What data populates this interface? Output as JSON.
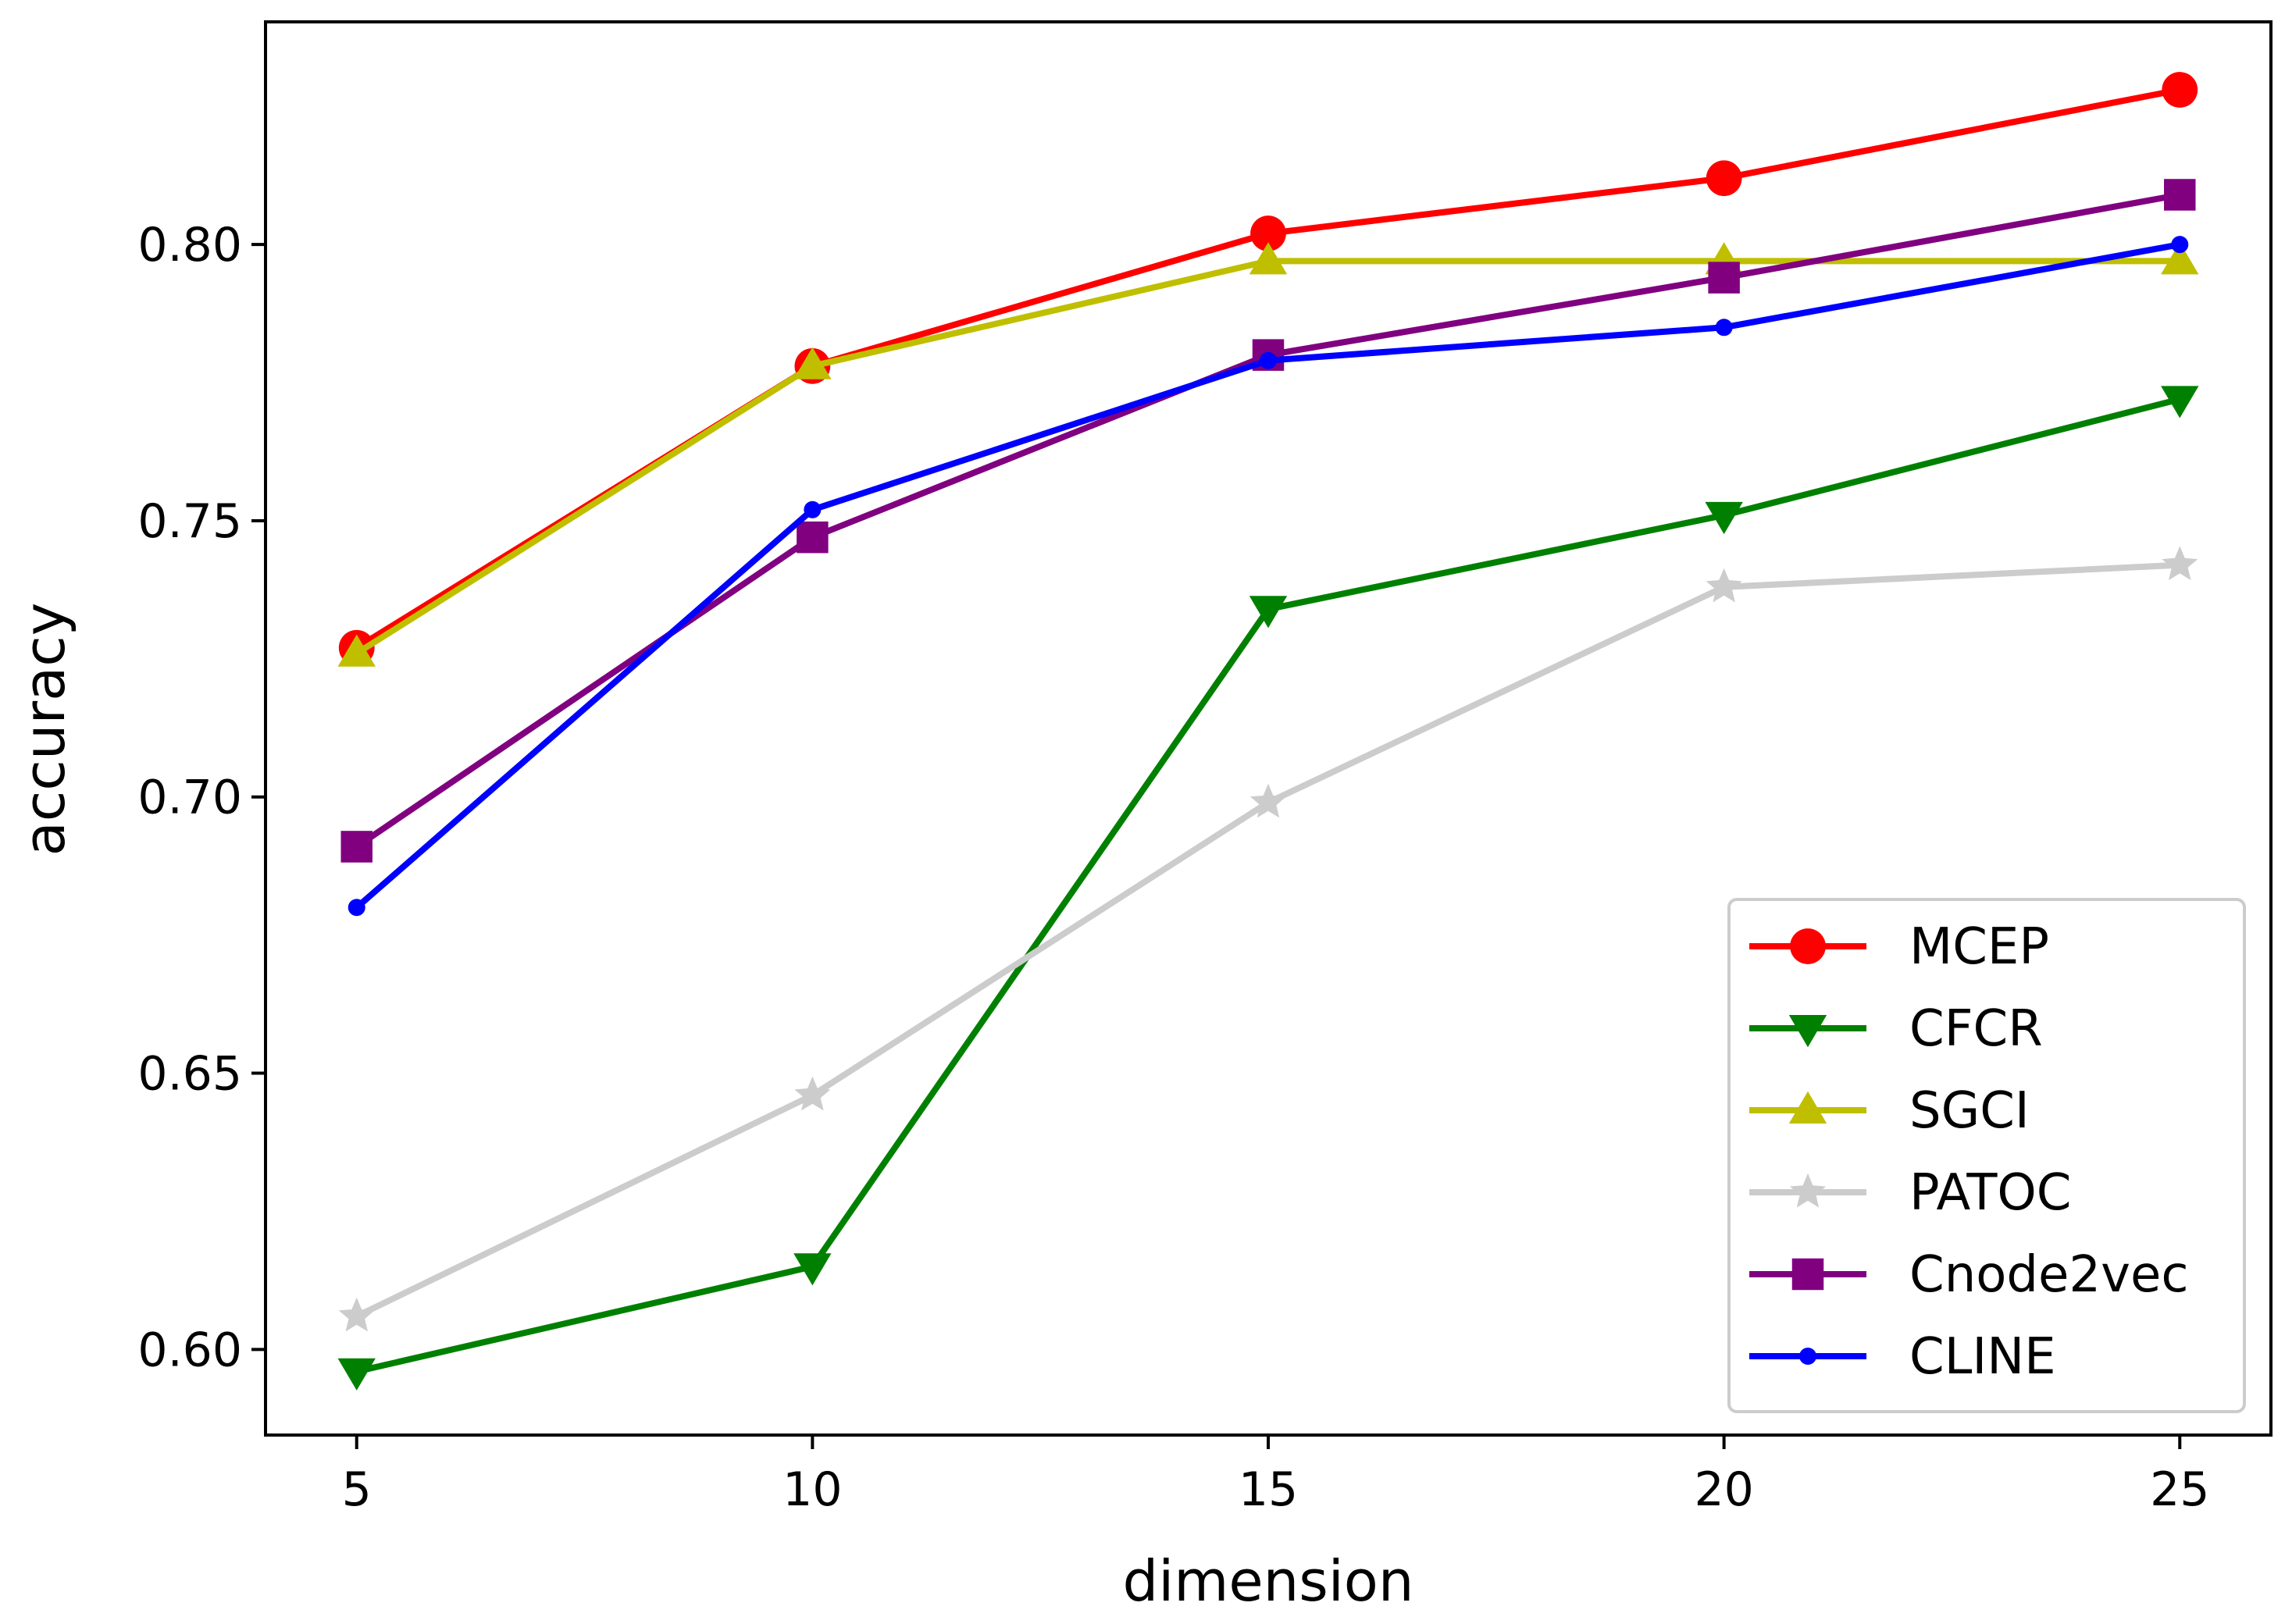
{
  "chart_data": {
    "type": "line",
    "title": "",
    "xlabel": "dimension",
    "ylabel": "accuracy",
    "x": [
      5,
      10,
      15,
      20,
      25
    ],
    "xticks": [
      "5",
      "10",
      "15",
      "20",
      "25"
    ],
    "yticks": [
      "0.60",
      "0.65",
      "0.70",
      "0.75",
      "0.80"
    ],
    "xlim": [
      4,
      26
    ],
    "ylim": [
      0.5845,
      0.8403
    ],
    "grid": false,
    "legend_position": "lower-right",
    "series": [
      {
        "name": "MCEP",
        "color": "#ff0000",
        "marker": "circle",
        "values": [
          0.727,
          0.778,
          0.802,
          0.812,
          0.828
        ]
      },
      {
        "name": "CFCR",
        "color": "#008000",
        "marker": "triangle-down",
        "values": [
          0.596,
          0.615,
          0.734,
          0.751,
          0.772
        ]
      },
      {
        "name": "SGCI",
        "color": "#bfbf00",
        "marker": "triangle-up",
        "values": [
          0.726,
          0.778,
          0.797,
          0.797,
          0.797
        ]
      },
      {
        "name": "PATOC",
        "color": "#cccccc",
        "marker": "star",
        "values": [
          0.606,
          0.646,
          0.699,
          0.738,
          0.742
        ]
      },
      {
        "name": "Cnode2vec",
        "color": "#800080",
        "marker": "square",
        "values": [
          0.691,
          0.747,
          0.78,
          0.794,
          0.809
        ]
      },
      {
        "name": "CLINE",
        "color": "#0000ff",
        "marker": "dot",
        "values": [
          0.68,
          0.752,
          0.779,
          0.785,
          0.8
        ]
      }
    ]
  }
}
